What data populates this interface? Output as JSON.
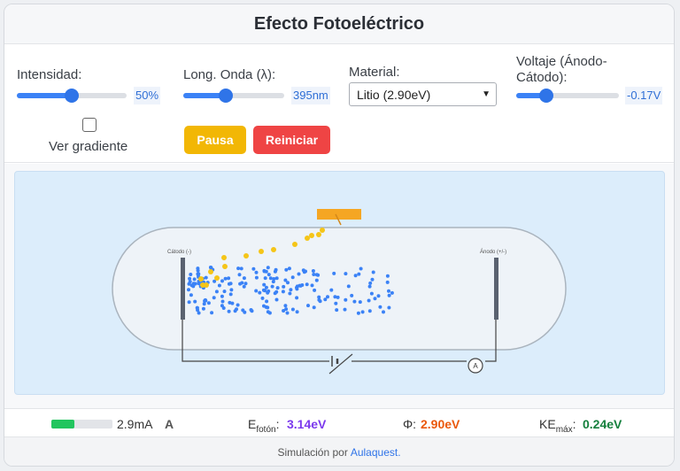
{
  "app": {
    "title": "Efecto Fotoeléctrico"
  },
  "controls": {
    "intensity": {
      "label": "Intensidad:",
      "value_text": "50%",
      "level": 0.5
    },
    "wavelength": {
      "label": "Long. Onda (λ):",
      "value_text": "395nm",
      "level": 0.42
    },
    "material": {
      "label": "Material:",
      "selected": "Litio (2.90eV)"
    },
    "voltage": {
      "label": "Voltaje (Ánodo-Cátodo):",
      "value_text": "-0.17V",
      "level": 0.29
    },
    "gradient": {
      "label": "Ver gradiente",
      "checked": false
    },
    "pause_label": "Pausa",
    "reset_label": "Reiniciar"
  },
  "simulation": {
    "cathode_label": "Cátodo (-)",
    "anode_label": "Ánodo (+/-)",
    "ammeter_label": "A"
  },
  "status": {
    "current": {
      "value": "2.9mA",
      "unit": "A",
      "level": 0.37
    },
    "photon_energy": {
      "label_main": "E",
      "label_sub": "fotón",
      "value": "3.14eV"
    },
    "work_function": {
      "label": "Φ:",
      "value": "2.90eV"
    },
    "ke_max": {
      "label_main": "KE",
      "label_sub": "máx",
      "value": "0.24eV"
    }
  },
  "footer": {
    "text": "Simulación por",
    "link": "Aulaquest."
  },
  "colors": {
    "accent_blue": "#3b82f6",
    "pause_yellow": "#f2b705",
    "reset_red": "#ef4444",
    "photon_purple": "#7c3aed",
    "work_orange": "#ea580c",
    "ke_green": "#15803d"
  }
}
